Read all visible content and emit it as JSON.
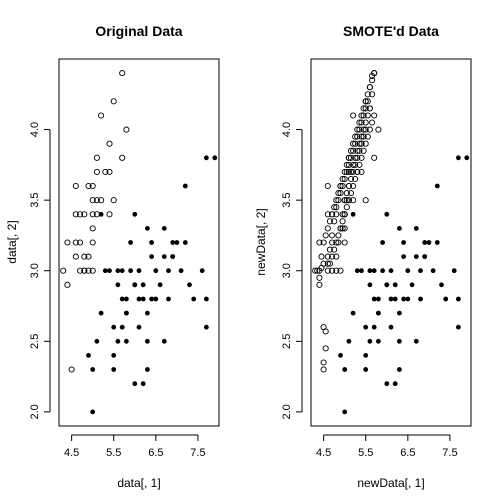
{
  "chart_data": [
    {
      "type": "scatter",
      "title": "Original Data",
      "xlabel": "data[, 1]",
      "ylabel": "data[, 2]",
      "xlim": [
        4.2,
        8.0
      ],
      "ylim": [
        1.9,
        4.5
      ],
      "xticks": [
        4.5,
        5.5,
        6.5,
        7.5
      ],
      "yticks": [
        2.0,
        2.5,
        3.0,
        3.5,
        4.0
      ],
      "xtick_labels": [
        "4.5",
        "5.5",
        "6.5",
        "7.5"
      ],
      "ytick_labels": [
        "2.0",
        "2.5",
        "3.0",
        "3.5",
        "4.0"
      ],
      "series": [
        {
          "marker": "open-circle",
          "color": "#000000",
          "x": [
            4.3,
            4.4,
            4.4,
            4.5,
            4.6,
            4.6,
            4.6,
            4.7,
            4.7,
            4.7,
            4.8,
            4.8,
            4.8,
            4.9,
            4.9,
            5.0,
            5.0,
            5.0,
            5.0,
            5.1,
            5.1,
            5.1,
            5.2,
            5.2,
            5.3,
            5.4,
            5.4,
            5.5,
            5.5,
            5.7,
            5.7,
            5.8,
            4.9,
            5.0,
            5.1,
            5.4,
            4.8,
            4.6,
            5.0
          ],
          "y": [
            3.0,
            2.9,
            3.2,
            2.3,
            3.4,
            3.6,
            3.1,
            3.2,
            3.0,
            3.4,
            3.4,
            3.0,
            3.1,
            3.0,
            3.6,
            3.5,
            3.3,
            3.4,
            3.2,
            3.5,
            3.8,
            3.7,
            3.5,
            4.1,
            3.7,
            3.9,
            3.7,
            4.2,
            3.5,
            4.4,
            3.8,
            4.0,
            3.1,
            3.6,
            3.4,
            3.4,
            3.0,
            3.2,
            3.0
          ]
        },
        {
          "marker": "filled-circle",
          "color": "#000000",
          "x": [
            4.9,
            5.0,
            5.0,
            5.1,
            5.2,
            5.4,
            5.5,
            5.5,
            5.5,
            5.6,
            5.6,
            5.6,
            5.7,
            5.7,
            5.7,
            5.8,
            5.8,
            5.8,
            5.9,
            5.9,
            6.0,
            6.0,
            6.0,
            6.1,
            6.1,
            6.1,
            6.2,
            6.2,
            6.3,
            6.3,
            6.3,
            6.4,
            6.4,
            6.4,
            6.5,
            6.5,
            6.6,
            6.7,
            6.7,
            6.7,
            6.8,
            6.9,
            6.9,
            7.0,
            7.1,
            7.2,
            7.2,
            7.3,
            7.4,
            7.6,
            7.7,
            7.7,
            7.7,
            7.9,
            5.2,
            5.3,
            6.0,
            6.2,
            6.9,
            6.8,
            6.3,
            5.8
          ],
          "y": [
            2.4,
            2.0,
            2.3,
            2.5,
            2.7,
            3.0,
            2.3,
            2.4,
            2.6,
            2.9,
            3.0,
            2.5,
            2.8,
            2.6,
            3.0,
            2.7,
            2.7,
            2.8,
            3.0,
            3.2,
            2.2,
            2.9,
            3.4,
            2.8,
            3.0,
            2.6,
            2.2,
            2.9,
            2.3,
            2.5,
            3.3,
            3.2,
            2.8,
            3.1,
            3.0,
            2.8,
            2.9,
            3.1,
            2.5,
            3.3,
            2.8,
            3.1,
            3.2,
            3.2,
            3.0,
            3.6,
            3.2,
            2.9,
            2.8,
            3.0,
            3.8,
            2.6,
            2.8,
            3.8,
            3.4,
            3.0,
            2.9,
            2.8,
            3.1,
            3.0,
            2.7,
            2.5
          ]
        }
      ]
    },
    {
      "type": "scatter",
      "title": "SMOTE'd Data",
      "xlabel": "newData[, 1]",
      "ylabel": "newData[, 2]",
      "xlim": [
        4.2,
        8.0
      ],
      "ylim": [
        1.9,
        4.5
      ],
      "xticks": [
        4.5,
        5.5,
        6.5,
        7.5
      ],
      "yticks": [
        2.0,
        2.5,
        3.0,
        3.5,
        4.0
      ],
      "xtick_labels": [
        "4.5",
        "5.5",
        "6.5",
        "7.5"
      ],
      "ytick_labels": [
        "2.0",
        "2.5",
        "3.0",
        "3.5",
        "4.0"
      ],
      "series": [
        {
          "marker": "open-circle",
          "color": "#000000",
          "x": [
            4.3,
            4.4,
            4.4,
            4.5,
            4.6,
            4.6,
            4.6,
            4.7,
            4.7,
            4.7,
            4.8,
            4.8,
            4.8,
            4.9,
            4.9,
            5.0,
            5.0,
            5.0,
            5.0,
            5.1,
            5.1,
            5.1,
            5.2,
            5.2,
            5.3,
            5.4,
            5.4,
            5.5,
            5.5,
            5.7,
            5.7,
            5.8,
            4.5,
            4.55,
            4.5,
            4.55,
            4.6,
            4.65,
            4.7,
            4.75,
            4.8,
            4.85,
            4.9,
            4.95,
            5.0,
            5.05,
            5.1,
            5.15,
            5.2,
            5.25,
            5.3,
            5.35,
            5.4,
            5.45,
            5.5,
            5.55,
            5.6,
            5.65,
            4.95,
            5.0,
            5.05,
            5.1,
            5.15,
            5.2,
            5.25,
            5.3,
            5.35,
            5.4,
            5.45,
            5.5,
            5.55,
            5.6,
            4.85,
            4.9,
            4.95,
            5.0,
            5.05,
            5.1,
            5.15,
            5.2,
            5.25,
            5.3,
            5.35,
            5.4,
            5.45,
            5.5,
            5.6,
            5.65,
            5.7,
            4.6,
            4.65,
            4.7,
            4.75,
            4.8,
            4.85,
            4.9,
            4.95,
            5.0,
            5.05,
            5.1,
            5.15,
            5.2,
            5.25,
            5.3,
            5.35,
            5.4,
            5.45,
            5.5,
            5.55,
            5.6,
            5.65,
            5.7,
            4.4,
            4.45,
            4.5,
            4.35,
            4.4,
            4.45,
            4.5,
            4.55,
            4.6,
            4.65,
            4.7,
            4.75,
            4.8,
            4.85,
            4.9,
            4.95,
            5.0,
            5.05,
            5.1,
            5.15,
            5.2,
            5.25,
            5.3,
            5.35,
            5.4,
            5.45,
            5.5,
            5.55,
            5.6,
            5.65
          ],
          "y": [
            3.0,
            2.9,
            3.2,
            2.3,
            3.4,
            3.6,
            3.1,
            3.2,
            3.0,
            3.4,
            3.4,
            3.0,
            3.1,
            3.0,
            3.6,
            3.5,
            3.3,
            3.4,
            3.2,
            3.5,
            3.8,
            3.7,
            3.5,
            4.1,
            3.7,
            3.9,
            3.7,
            4.2,
            3.5,
            4.4,
            3.8,
            4.0,
            2.6,
            2.45,
            2.35,
            2.57,
            3.05,
            3.15,
            3.25,
            3.35,
            3.45,
            3.5,
            3.55,
            3.6,
            3.65,
            3.7,
            3.75,
            3.8,
            3.85,
            3.9,
            3.95,
            4.0,
            4.05,
            4.1,
            4.15,
            4.2,
            4.3,
            4.35,
            3.3,
            3.4,
            3.5,
            3.6,
            3.7,
            3.75,
            3.8,
            3.85,
            3.9,
            3.95,
            4.0,
            4.05,
            4.1,
            4.15,
            3.2,
            3.3,
            3.4,
            3.5,
            3.55,
            3.6,
            3.65,
            3.7,
            3.75,
            3.8,
            3.85,
            3.9,
            3.95,
            4.0,
            4.15,
            4.25,
            4.4,
            3.0,
            3.05,
            3.1,
            3.15,
            3.2,
            3.25,
            3.3,
            3.35,
            3.4,
            3.45,
            3.5,
            3.55,
            3.6,
            3.65,
            3.7,
            3.75,
            3.8,
            3.85,
            3.9,
            3.95,
            4.0,
            4.05,
            4.1,
            3.0,
            3.02,
            3.05,
            3.0,
            2.95,
            3.1,
            3.2,
            3.25,
            3.3,
            3.35,
            3.4,
            3.45,
            3.5,
            3.55,
            3.6,
            3.65,
            3.7,
            3.75,
            3.8,
            3.85,
            3.9,
            3.95,
            4.0,
            4.05,
            4.1,
            4.15,
            4.2,
            4.25,
            4.3,
            4.38
          ]
        },
        {
          "marker": "filled-circle",
          "color": "#000000",
          "x": [
            4.9,
            5.0,
            5.0,
            5.1,
            5.2,
            5.4,
            5.5,
            5.5,
            5.5,
            5.6,
            5.6,
            5.6,
            5.7,
            5.7,
            5.7,
            5.8,
            5.8,
            5.8,
            5.9,
            5.9,
            6.0,
            6.0,
            6.0,
            6.1,
            6.1,
            6.1,
            6.2,
            6.2,
            6.3,
            6.3,
            6.3,
            6.4,
            6.4,
            6.4,
            6.5,
            6.5,
            6.6,
            6.7,
            6.7,
            6.7,
            6.8,
            6.9,
            6.9,
            7.0,
            7.1,
            7.2,
            7.2,
            7.3,
            7.4,
            7.6,
            7.7,
            7.7,
            7.7,
            7.9,
            5.2,
            5.3,
            6.0,
            6.2,
            6.9,
            6.8,
            6.3,
            5.8
          ],
          "y": [
            2.4,
            2.0,
            2.3,
            2.5,
            2.7,
            3.0,
            2.3,
            2.4,
            2.6,
            2.9,
            3.0,
            2.5,
            2.8,
            2.6,
            3.0,
            2.7,
            2.7,
            2.8,
            3.0,
            3.2,
            2.2,
            2.9,
            3.4,
            2.8,
            3.0,
            2.6,
            2.2,
            2.9,
            2.3,
            2.5,
            3.3,
            3.2,
            2.8,
            3.1,
            3.0,
            2.8,
            2.9,
            3.1,
            2.5,
            3.3,
            2.8,
            3.1,
            3.2,
            3.2,
            3.0,
            3.6,
            3.2,
            2.9,
            2.8,
            3.0,
            3.8,
            2.6,
            2.8,
            3.8,
            3.4,
            3.0,
            2.9,
            2.8,
            3.1,
            3.0,
            2.7,
            2.5
          ]
        }
      ]
    }
  ]
}
